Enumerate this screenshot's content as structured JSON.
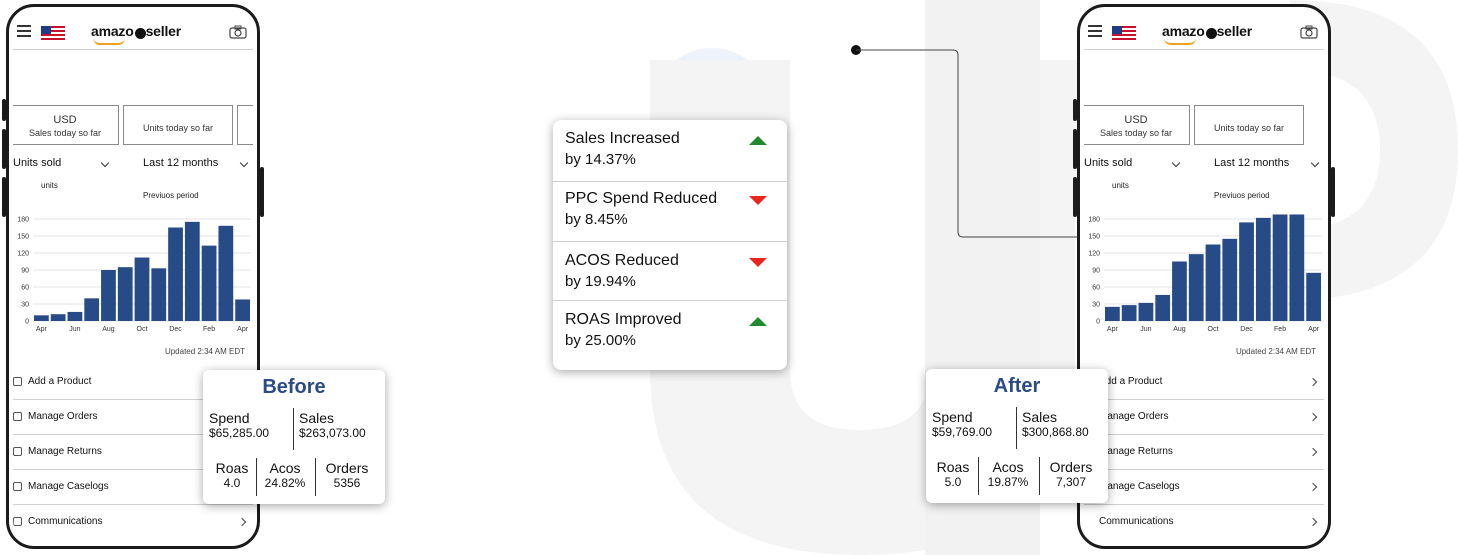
{
  "improvements": [
    {
      "line1": "Sales Increased",
      "line2": "by 14.37%",
      "direction": "up"
    },
    {
      "line1": "PPC Spend Reduced",
      "line2": "by 8.45%",
      "direction": "down"
    },
    {
      "line1": "ACOS Reduced",
      "line2": "by 19.94%",
      "direction": "down"
    },
    {
      "line1": "ROAS Improved",
      "line2": "by 25.00%",
      "direction": "up"
    }
  ],
  "colors": {
    "up": "#1f8a2e",
    "down": "#e8261d",
    "bar": "#274b87",
    "title": "#2b4c86"
  },
  "before": {
    "title": "Before",
    "spend_label": "Spend",
    "spend": "$65,285.00",
    "sales_label": "Sales",
    "sales": "$263,073.00",
    "roas_label": "Roas",
    "roas": "4.0",
    "acos_label": "Acos",
    "acos": "24.82%",
    "orders_label": "Orders",
    "orders": "5356"
  },
  "after": {
    "title": "After",
    "spend_label": "Spend",
    "spend": "$59,769.00",
    "sales_label": "Sales",
    "sales": "$300,868.80",
    "roas_label": "Roas",
    "roas": "5.0",
    "acos_label": "Acos",
    "acos": "19.87%",
    "orders_label": "Orders",
    "orders": "7,307"
  },
  "app": {
    "logo_left": "amazo",
    "logo_right": "seller",
    "tile1_currency": "USD",
    "tile1_label": "Sales today so far",
    "tile2_label": "Units today so far",
    "dropdown_metric": "Units sold",
    "dropdown_period": "Last 12 months",
    "units_label": "units",
    "previous_label": "Previuos period",
    "updated": "Updated 2:34 AM EDT",
    "menu": [
      "Add a Product",
      "Manage Orders",
      "Manage Returns",
      "Manage Caselogs",
      "Communications"
    ],
    "menu_right": [
      "Add a Product",
      "Manage Orders",
      "Manage Returns",
      "Manage Caselogs",
      "Communications"
    ]
  },
  "chart_data": [
    {
      "type": "bar",
      "name_hint": "before",
      "x_tick_labels": [
        "Apr",
        "Jun",
        "Aug",
        "Oct",
        "Dec",
        "Feb",
        "Apr"
      ],
      "y_ticks": [
        0,
        30,
        60,
        90,
        120,
        150,
        180
      ],
      "ylim": [
        0,
        180
      ],
      "values": [
        10,
        12,
        16,
        40,
        90,
        95,
        112,
        93,
        165,
        175,
        133,
        168,
        38
      ],
      "grid": true
    },
    {
      "type": "bar",
      "name_hint": "after",
      "x_tick_labels": [
        "Apr",
        "Jun",
        "Aug",
        "Oct",
        "Dec",
        "Feb",
        "Apr"
      ],
      "y_ticks": [
        0,
        30,
        60,
        90,
        120,
        150,
        180
      ],
      "ylim": [
        0,
        180
      ],
      "values": [
        25,
        28,
        32,
        46,
        105,
        118,
        135,
        145,
        174,
        182,
        188,
        188,
        85
      ],
      "grid": true
    }
  ]
}
